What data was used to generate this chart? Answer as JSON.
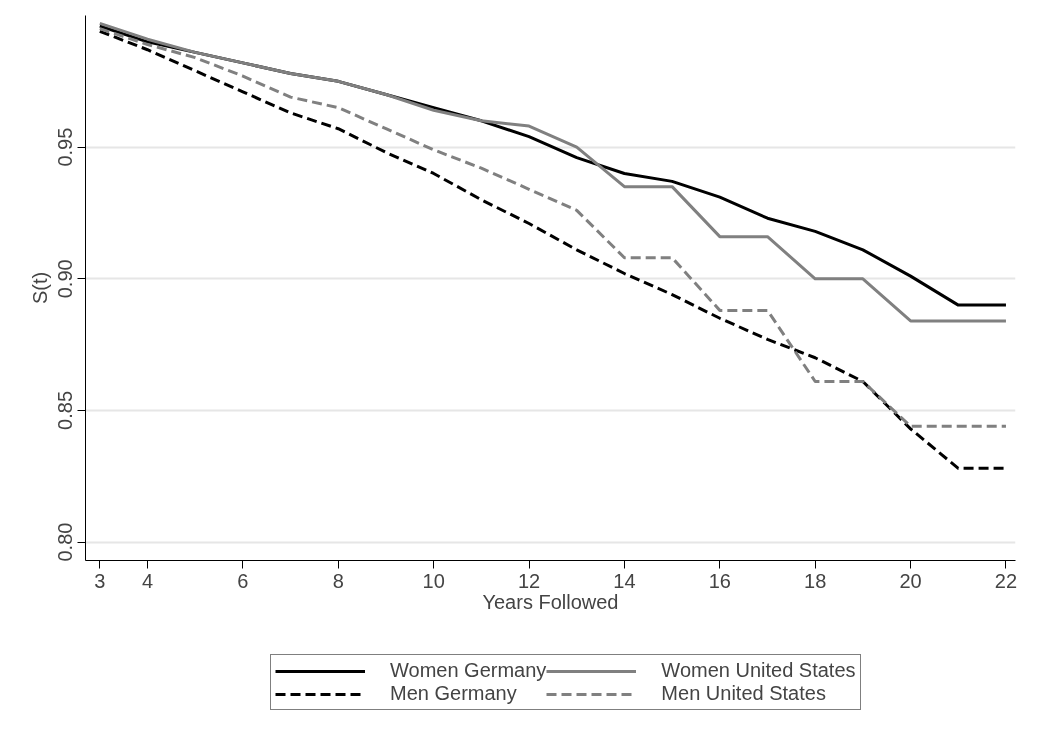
{
  "chart_data": {
    "type": "line",
    "xlabel": "Years Followed",
    "ylabel": "S(t)",
    "x": [
      3,
      4,
      5,
      6,
      7,
      8,
      9,
      10,
      11,
      12,
      13,
      14,
      15,
      16,
      17,
      18,
      19,
      20,
      21,
      22
    ],
    "series": [
      {
        "name": "Women Germany",
        "color": "#000000",
        "line_style": "solid",
        "values": [
          0.996,
          0.99,
          0.986,
          0.982,
          0.978,
          0.975,
          0.97,
          0.965,
          0.96,
          0.954,
          0.946,
          0.94,
          0.937,
          0.931,
          0.923,
          0.918,
          0.911,
          0.901,
          0.89,
          0.89
        ]
      },
      {
        "name": "Women United States",
        "color": "#808080",
        "line_style": "solid",
        "values": [
          0.997,
          0.991,
          0.986,
          0.982,
          0.978,
          0.975,
          0.97,
          0.964,
          0.96,
          0.958,
          0.95,
          0.935,
          0.935,
          0.916,
          0.916,
          0.9,
          0.9,
          0.884,
          0.884,
          0.884
        ]
      },
      {
        "name": "Men Germany",
        "color": "#000000",
        "line_style": "dashed",
        "values": [
          0.994,
          0.987,
          0.979,
          0.971,
          0.963,
          0.957,
          0.948,
          0.94,
          0.93,
          0.921,
          0.911,
          0.902,
          0.894,
          0.885,
          0.877,
          0.87,
          0.861,
          0.843,
          0.828,
          0.828
        ]
      },
      {
        "name": "Men United States",
        "color": "#808080",
        "line_style": "dashed",
        "values": [
          0.995,
          0.989,
          0.984,
          0.977,
          0.969,
          0.965,
          0.957,
          0.949,
          0.942,
          0.934,
          0.926,
          0.908,
          0.908,
          0.888,
          0.888,
          0.861,
          0.861,
          0.844,
          0.844,
          0.844
        ]
      }
    ],
    "xlim": [
      2.7,
      22.2
    ],
    "xticks": [
      3,
      4,
      6,
      8,
      10,
      12,
      14,
      16,
      18,
      20,
      22
    ],
    "ylim": [
      0.793,
      1.0
    ],
    "yticks": [
      {
        "value": 0.8,
        "label": "0.80"
      },
      {
        "value": 0.85,
        "label": "0.85"
      },
      {
        "value": 0.9,
        "label": "0.90"
      },
      {
        "value": 0.95,
        "label": "0.95"
      }
    ],
    "grid": "y",
    "legend": "bottom"
  }
}
